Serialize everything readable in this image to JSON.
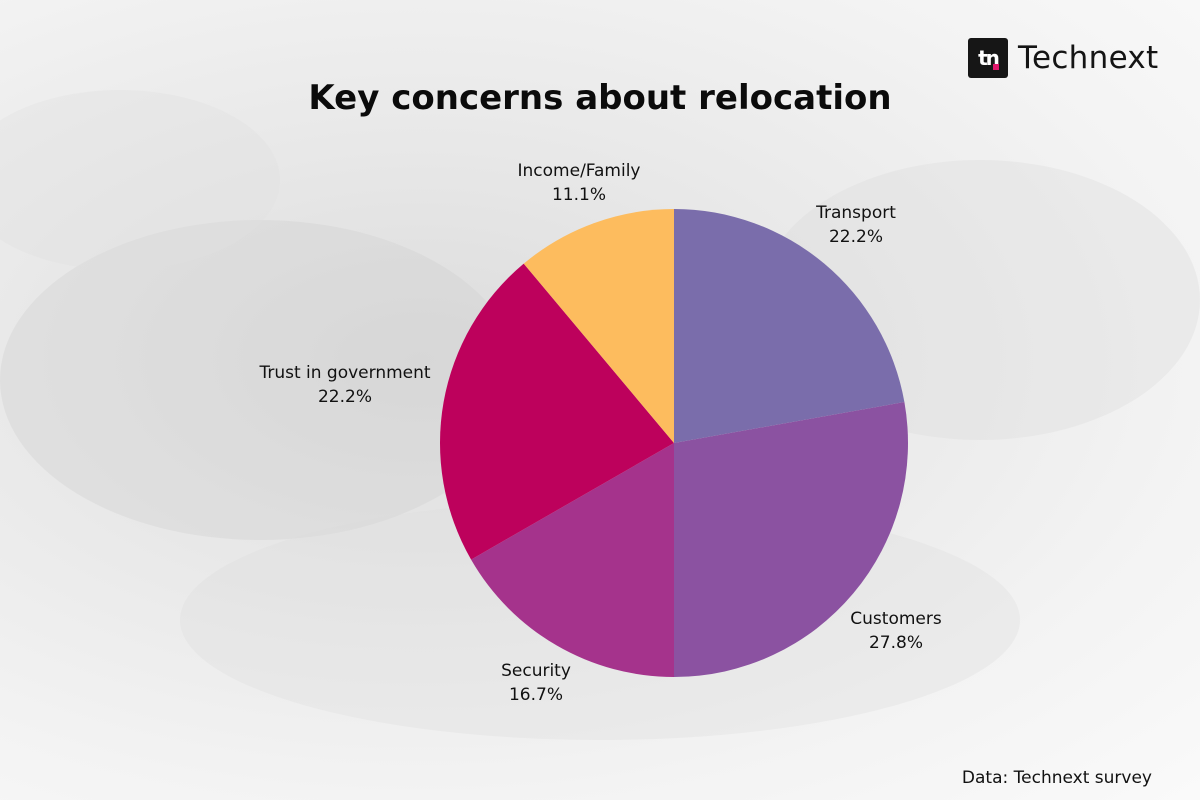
{
  "brand": {
    "mark_text": "tn",
    "name": "Technext"
  },
  "source_note": "Data: Technext survey",
  "chart_data": {
    "type": "pie",
    "title": "Key concerns about relocation",
    "start": "12 o'clock, clockwise",
    "slices": [
      {
        "label": "Transport",
        "value": 22.2,
        "value_label": "22.2%",
        "color": "#7a6dab"
      },
      {
        "label": "Customers",
        "value": 27.8,
        "value_label": "27.8%",
        "color": "#8b52a1"
      },
      {
        "label": "Security",
        "value": 16.7,
        "value_label": "16.7%",
        "color": "#a5338c"
      },
      {
        "label": "Trust in government",
        "value": 22.2,
        "value_label": "22.2%",
        "color": "#bd015c"
      },
      {
        "label": "Income/Family",
        "value": 11.1,
        "value_label": "11.1%",
        "color": "#fdbc5e"
      }
    ]
  }
}
